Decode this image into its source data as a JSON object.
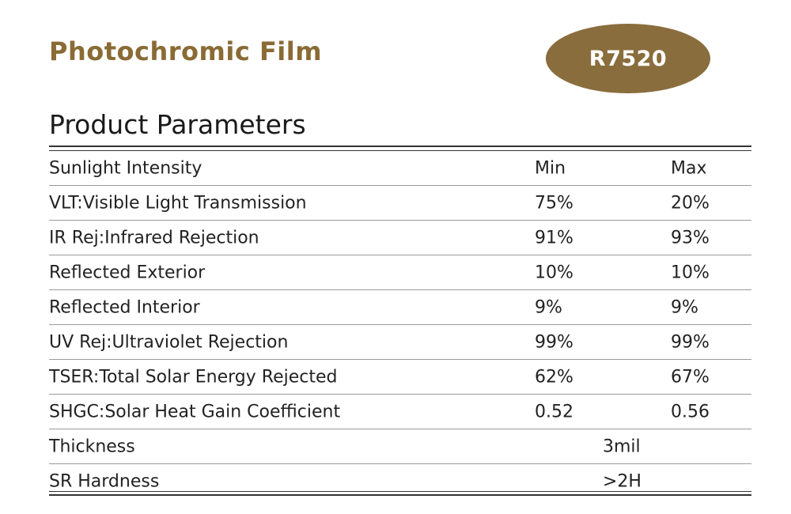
{
  "header": {
    "title": "Photochromic Film",
    "model_badge": "R7520"
  },
  "section": {
    "title": "Product Parameters"
  },
  "colors": {
    "title_gold": "#8a6b35",
    "badge_bg": "#8a6d3d"
  },
  "table": {
    "rows": [
      {
        "label": "Sunlight Intensity",
        "min": "Min",
        "max": "Max"
      },
      {
        "label": "VLT:Visible Light Transmission",
        "min": "75%",
        "max": "20%"
      },
      {
        "label": "IR Rej:Infrared Rejection",
        "min": "91%",
        "max": "93%"
      },
      {
        "label": "Reflected Exterior",
        "min": "10%",
        "max": "10%"
      },
      {
        "label": "Reflected Interior",
        "min": "9%",
        "max": "9%"
      },
      {
        "label": "UV Rej:Ultraviolet Rejection",
        "min": "99%",
        "max": "99%"
      },
      {
        "label": "TSER:Total Solar Energy Rejected",
        "min": "62%",
        "max": "67%"
      },
      {
        "label": "SHGC:Solar Heat Gain Coefficient",
        "min": "0.52",
        "max": "0.56"
      }
    ],
    "span_rows": [
      {
        "label": "Thickness",
        "value": "3mil"
      },
      {
        "label": "SR Hardness",
        "value": ">2H"
      }
    ]
  }
}
